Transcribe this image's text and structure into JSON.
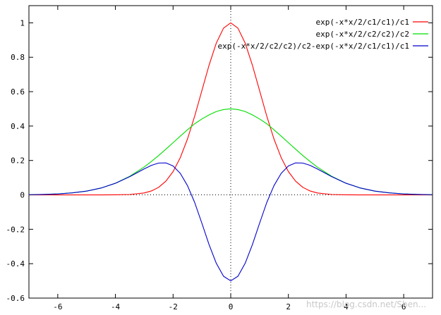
{
  "chart_data": {
    "type": "line",
    "title": "",
    "xlabel": "",
    "ylabel": "",
    "xlim": [
      -7,
      7
    ],
    "ylim": [
      -0.6,
      1.1
    ],
    "grid": false,
    "zero_axes": "dotted",
    "legend_position": "top-right",
    "x_ticks": [
      -6,
      -4,
      -2,
      0,
      2,
      4,
      6
    ],
    "x_tick_labels": [
      "-6",
      "-4",
      "-2",
      "0",
      "2",
      "4",
      "6"
    ],
    "y_ticks": [
      -0.6,
      -0.4,
      -0.2,
      0,
      0.2,
      0.4,
      0.6,
      0.8,
      1
    ],
    "y_tick_labels": [
      "-0.6",
      "-0.4",
      "-0.2",
      "0",
      "0.2",
      "0.4",
      "0.6",
      "0.8",
      "1"
    ],
    "x": [
      -7,
      -6.5,
      -6,
      -5.5,
      -5,
      -4.5,
      -4,
      -3.5,
      -3,
      -2.75,
      -2.5,
      -2.25,
      -2,
      -1.75,
      -1.5,
      -1.25,
      -1,
      -0.75,
      -0.5,
      -0.25,
      0,
      0.25,
      0.5,
      0.75,
      1,
      1.25,
      1.5,
      1.75,
      2,
      2.25,
      2.5,
      2.75,
      3,
      3.5,
      4,
      4.5,
      5,
      5.5,
      6,
      6.5,
      7
    ],
    "series": [
      {
        "name": "exp(-x*x/2/c1/c1)/c1",
        "color": "#ff0000",
        "values": [
          0,
          0,
          0,
          0,
          0,
          0,
          0.0003,
          0.0022,
          0.0111,
          0.0228,
          0.0439,
          0.0796,
          0.1353,
          0.2163,
          0.3247,
          0.4578,
          0.6065,
          0.7548,
          0.8825,
          0.9692,
          1,
          0.9692,
          0.8825,
          0.7548,
          0.6065,
          0.4578,
          0.3247,
          0.2163,
          0.1353,
          0.0796,
          0.0439,
          0.0228,
          0.0111,
          0.0022,
          0.0003,
          0,
          0,
          0,
          0,
          0,
          0
        ]
      },
      {
        "name": "exp(-x*x/2/c2/c2)/c2",
        "color": "#00dd00",
        "values": [
          0.0011,
          0.0025,
          0.0056,
          0.0115,
          0.022,
          0.0397,
          0.0677,
          0.1082,
          0.1623,
          0.1943,
          0.2289,
          0.2655,
          0.3033,
          0.3413,
          0.3784,
          0.4134,
          0.4412,
          0.4649,
          0.4846,
          0.4961,
          0.5,
          0.4961,
          0.4846,
          0.4649,
          0.4412,
          0.4134,
          0.3784,
          0.3413,
          0.3033,
          0.2655,
          0.2289,
          0.1943,
          0.1623,
          0.1082,
          0.0677,
          0.0397,
          0.022,
          0.0115,
          0.0056,
          0.0025,
          0.0011
        ]
      },
      {
        "name": "exp(-x*x/2/c2/c2)/c2-exp(-x*x/2/c1/c1)/c1",
        "color": "#0000cc",
        "values": [
          0.0011,
          0.0025,
          0.0056,
          0.0115,
          0.022,
          0.0397,
          0.0674,
          0.106,
          0.1512,
          0.1715,
          0.185,
          0.1859,
          0.168,
          0.125,
          0.0537,
          -0.0444,
          -0.1653,
          -0.2899,
          -0.3979,
          -0.4731,
          -0.5,
          -0.4731,
          -0.3979,
          -0.2899,
          -0.1653,
          -0.0444,
          0.0537,
          0.125,
          0.168,
          0.1859,
          0.185,
          0.1715,
          0.1512,
          0.106,
          0.0674,
          0.0397,
          0.022,
          0.0115,
          0.0056,
          0.0025,
          0.0011
        ]
      }
    ]
  },
  "watermark": "https://blog.csdn.net/Shen..."
}
